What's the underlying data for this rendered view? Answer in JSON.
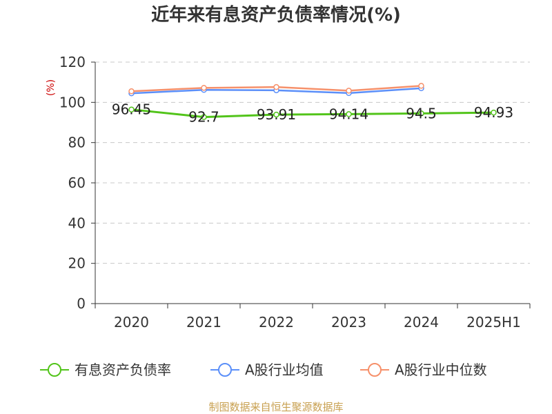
{
  "chart_data": {
    "type": "line",
    "title": "近年来有息资产负债率情况(%)",
    "ylabel": "(%)",
    "categories": [
      "2020",
      "2021",
      "2022",
      "2023",
      "2024",
      "2025H1"
    ],
    "ylim": [
      0,
      120
    ],
    "yticks": [
      0,
      20,
      40,
      60,
      80,
      100,
      120
    ],
    "grid": true,
    "legend_position": "bottom",
    "series": [
      {
        "name": "有息资产负债率",
        "color": "#52c41a",
        "values": [
          96.45,
          92.7,
          93.91,
          94.14,
          94.5,
          94.93
        ],
        "labels": [
          "96.45",
          "92.7",
          "93.91",
          "94.14",
          "94.5",
          "94.93"
        ]
      },
      {
        "name": "A股行业均值",
        "color": "#5b8ff9",
        "values": [
          104.5,
          106.2,
          106.0,
          104.6,
          107.0,
          null
        ]
      },
      {
        "name": "A股行业中位数",
        "color": "#f6906a",
        "values": [
          105.5,
          107.2,
          107.6,
          105.8,
          108.2,
          null
        ]
      }
    ],
    "source": "制图数据来自恒生聚源数据库"
  }
}
